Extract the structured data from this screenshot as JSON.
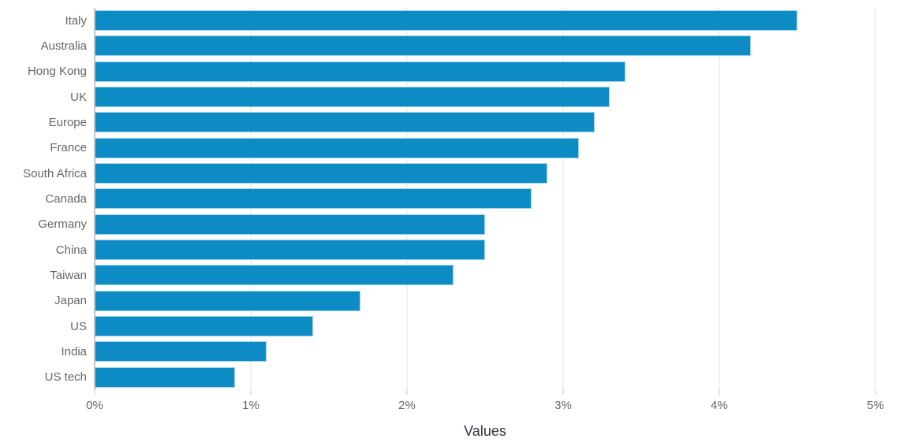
{
  "chart_data": {
    "type": "bar",
    "orientation": "horizontal",
    "title": "",
    "xlabel": "Values",
    "ylabel": "",
    "categories": [
      "Italy",
      "Australia",
      "Hong Kong",
      "UK",
      "Europe",
      "France",
      "South Africa",
      "Canada",
      "Germany",
      "China",
      "Taiwan",
      "Japan",
      "US",
      "India",
      "US tech"
    ],
    "values": [
      4.5,
      4.2,
      3.4,
      3.3,
      3.2,
      3.1,
      2.9,
      2.8,
      2.5,
      2.5,
      2.3,
      1.7,
      1.4,
      1.1,
      0.9
    ],
    "value_unit": "%",
    "xlim": [
      0,
      5
    ],
    "x_ticks": [
      "0%",
      "1%",
      "2%",
      "3%",
      "4%",
      "5%"
    ],
    "grid": "vertical",
    "legend": "none",
    "bar_color": "#0c8bc4",
    "bar_border_color": "#a0d2eb",
    "gridline_color": "#e3e3e3",
    "axis_line_color": "#c4c4c4",
    "label_color": "#666666",
    "axis_title_color": "#31353d"
  }
}
